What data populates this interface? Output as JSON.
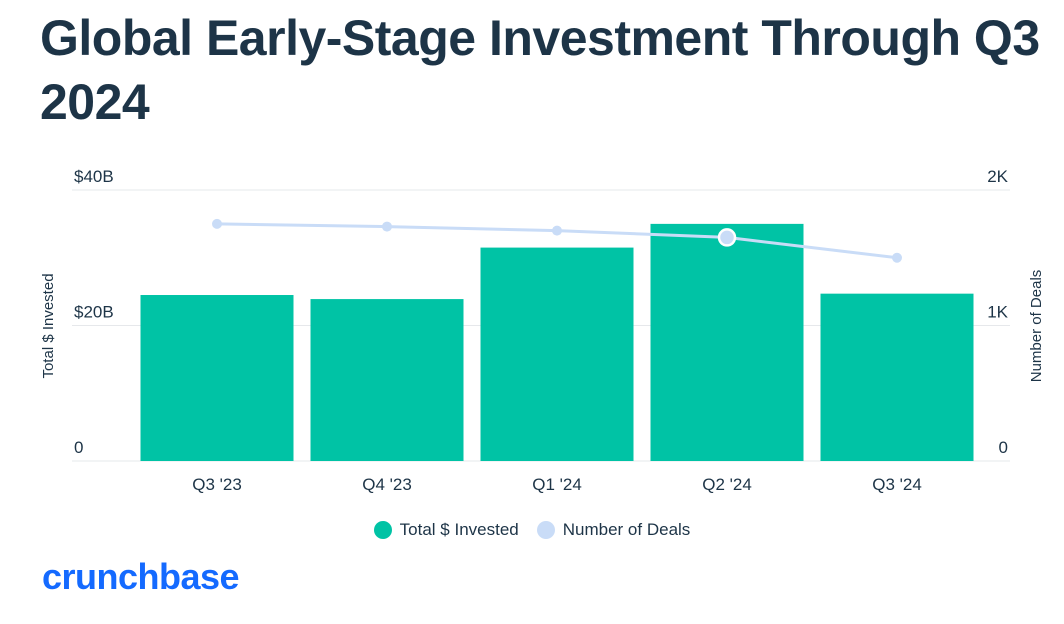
{
  "title": "Global Early-Stage Investment Through Q3 2024",
  "logo": "crunchbase",
  "colors": {
    "bar": "#00c3a5",
    "line": "#c9dcf7",
    "grid": "#e6e8eb",
    "text": "#1d3447",
    "logo": "#146aff"
  },
  "chart_data": {
    "type": "bar",
    "title": "Global Early-Stage Investment Through Q3 2024",
    "categories": [
      "Q3 '23",
      "Q4 '23",
      "Q1 '24",
      "Q2 '24",
      "Q3 '24"
    ],
    "series": [
      {
        "name": "Total $ Invested",
        "type": "bar",
        "axis": "left",
        "values": [
          24.5,
          23.9,
          31.5,
          35.0,
          24.7
        ]
      },
      {
        "name": "Number of Deals",
        "type": "line",
        "axis": "right",
        "values": [
          1750,
          1730,
          1700,
          1650,
          1500
        ]
      }
    ],
    "ylabel": "Total $ Invested",
    "y2label": "Number of Deals",
    "ylim": [
      0,
      40
    ],
    "y2lim": [
      0,
      2000
    ],
    "yticks": [
      {
        "value": 0,
        "label": "0"
      },
      {
        "value": 20,
        "label": "$20B"
      },
      {
        "value": 40,
        "label": "$40B"
      }
    ],
    "y2ticks": [
      {
        "value": 0,
        "label": "0"
      },
      {
        "value": 1000,
        "label": "1K"
      },
      {
        "value": 2000,
        "label": "2K"
      }
    ],
    "highlight_index": 3,
    "legend": [
      {
        "label": "Total $ Invested"
      },
      {
        "label": "Number of Deals"
      }
    ],
    "legend_position": "bottom-center",
    "grid": true
  }
}
